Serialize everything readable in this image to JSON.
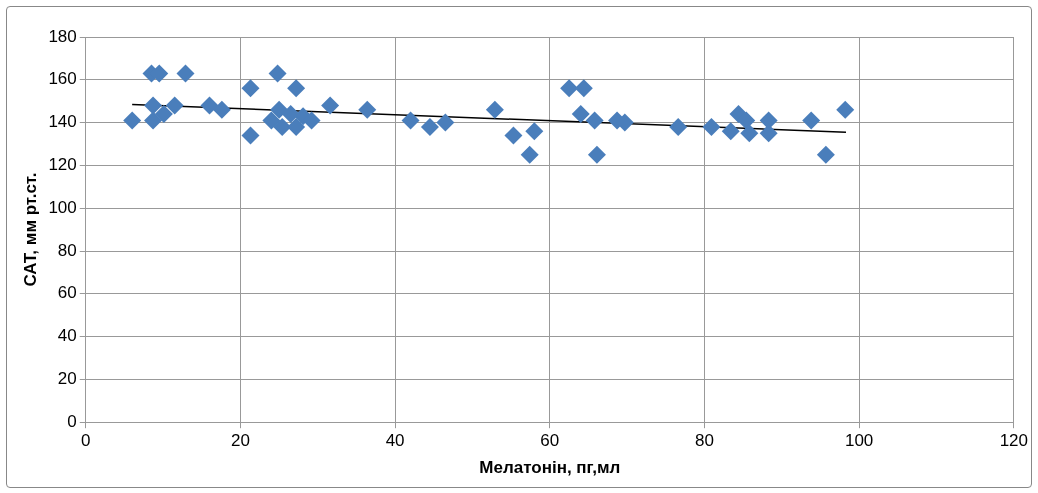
{
  "chart_data": {
    "type": "scatter",
    "xlabel": "Мелатонін, пг,мл",
    "ylabel": "САТ, мм рт.ст.",
    "xlim": [
      0,
      120
    ],
    "xticks": [
      0,
      20,
      40,
      60,
      80,
      100,
      120
    ],
    "ylim": [
      0,
      180
    ],
    "yticks": [
      0,
      20,
      40,
      60,
      80,
      100,
      120,
      140,
      160,
      180
    ],
    "grid": true,
    "legend": false,
    "marker": "diamond",
    "series": [
      {
        "color": "#4a7ebb",
        "x": [
          6,
          8.5,
          9.5,
          8.7,
          8.7,
          10.1,
          11.5,
          12.9,
          16,
          17.6,
          21.3,
          21.3,
          24.8,
          24,
          25,
          25.4,
          26.5,
          27.2,
          27.2,
          28.1,
          29.2,
          31.6,
          36.4,
          42,
          44.5,
          46.5,
          52.9,
          55.3,
          57.4,
          58,
          62.5,
          64.4,
          64,
          65.8,
          66.1,
          68.7,
          69.7,
          76.6,
          80.9,
          83.4,
          84.4,
          85.4,
          85.8,
          88.3,
          88.3,
          93.8,
          95.7,
          98.2
        ],
        "values": [
          141,
          163,
          163,
          148,
          141,
          144,
          148,
          163,
          148,
          146,
          156,
          134,
          163,
          141,
          146,
          138,
          144,
          156,
          138,
          143,
          141,
          148,
          146,
          141,
          138,
          140,
          146,
          134,
          125,
          136,
          156,
          156,
          144,
          141,
          125,
          141,
          140,
          138,
          138,
          136,
          144,
          141,
          135,
          141,
          135,
          141,
          125,
          146
        ]
      },
      {
        "type": "line",
        "color": "#000000",
        "marker": "none",
        "x": [
          6,
          98.3
        ],
        "values": [
          148.5,
          135.5
        ]
      }
    ]
  }
}
